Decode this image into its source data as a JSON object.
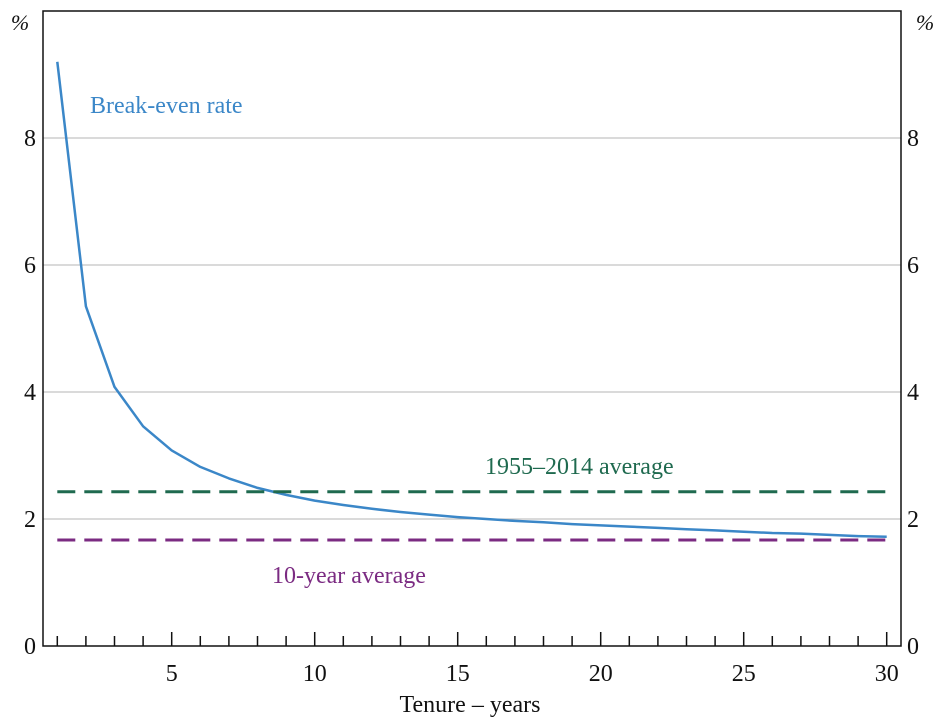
{
  "chart_data": {
    "type": "line",
    "title": "",
    "xlabel": "Tenure – years",
    "ylabel": "",
    "y_unit_left": "%",
    "y_unit_right": "%",
    "xlim": [
      0.5,
      30.5
    ],
    "ylim": [
      0,
      10
    ],
    "x_ticks": [
      5,
      10,
      15,
      20,
      25,
      30
    ],
    "x_minor_ticks": [
      1,
      2,
      3,
      4,
      5,
      6,
      7,
      8,
      9,
      10,
      11,
      12,
      13,
      14,
      15,
      16,
      17,
      18,
      19,
      20,
      21,
      22,
      23,
      24,
      25,
      26,
      27,
      28,
      29,
      30
    ],
    "y_ticks": [
      0,
      2,
      4,
      6,
      8
    ],
    "grid": true,
    "series": [
      {
        "name": "Break-even rate",
        "color": "#3b87c8",
        "style": "solid",
        "x": [
          1,
          2,
          3,
          4,
          5,
          6,
          7,
          8,
          9,
          10,
          11,
          12,
          13,
          14,
          15,
          16,
          17,
          18,
          19,
          20,
          21,
          22,
          23,
          24,
          25,
          26,
          27,
          28,
          29,
          30
        ],
        "y": [
          9.2,
          5.35,
          4.08,
          3.46,
          3.08,
          2.82,
          2.64,
          2.49,
          2.38,
          2.29,
          2.22,
          2.16,
          2.11,
          2.07,
          2.03,
          2.0,
          1.97,
          1.95,
          1.92,
          1.9,
          1.88,
          1.86,
          1.84,
          1.82,
          1.8,
          1.78,
          1.77,
          1.75,
          1.73,
          1.72
        ]
      },
      {
        "name": "1955–2014 average",
        "color": "#1f6a4f",
        "style": "dashed",
        "x": [
          1,
          30
        ],
        "y": [
          2.43,
          2.43
        ]
      },
      {
        "name": "10-year average",
        "color": "#7b2b82",
        "style": "dashed",
        "x": [
          1,
          30
        ],
        "y": [
          1.67,
          1.67
        ]
      }
    ]
  }
}
